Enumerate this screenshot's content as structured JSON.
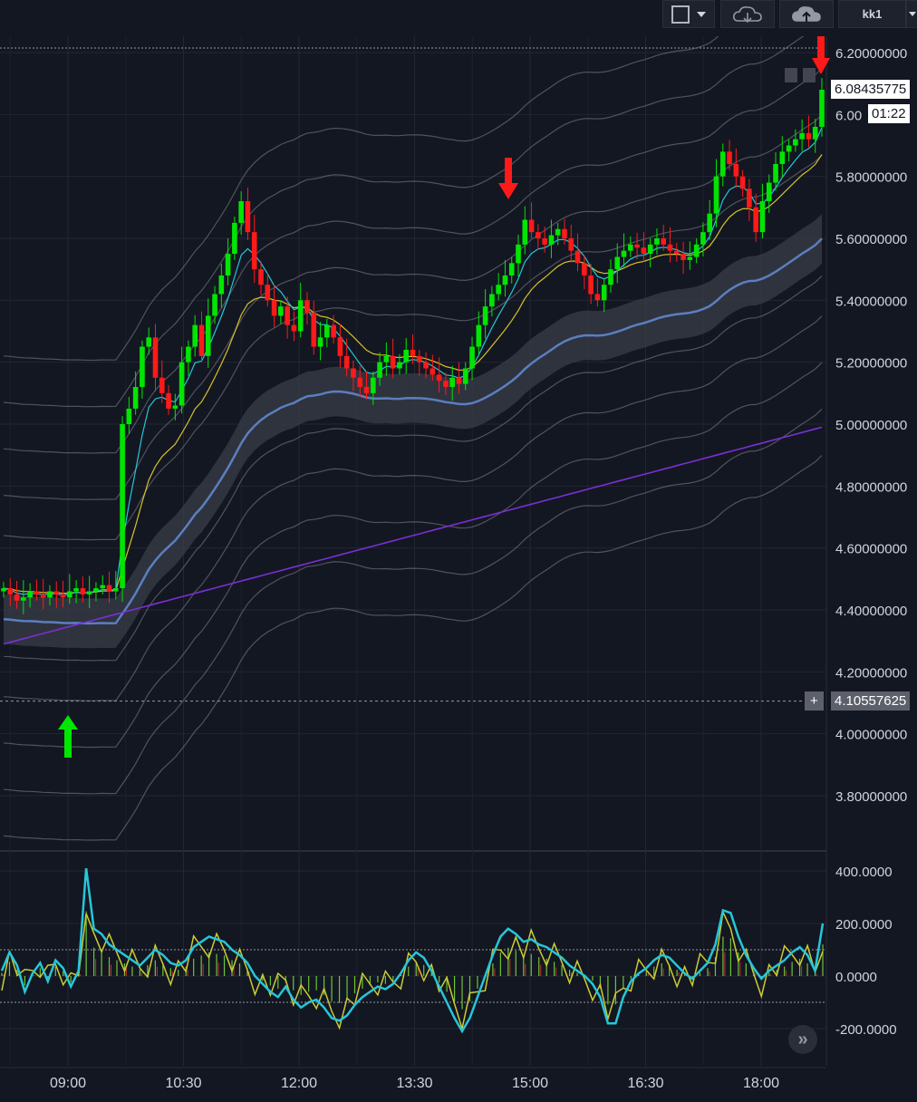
{
  "toolbar": {
    "user_label": "kk1",
    "icons": [
      "square-icon",
      "chevron-down-icon",
      "cloud-download-icon",
      "cloud-upload-icon",
      "chevron-down-icon"
    ]
  },
  "price_axis": {
    "ticks": [
      "6.20000000",
      "6.00",
      "5.80000000",
      "5.60000000",
      "5.40000000",
      "5.20000000",
      "5.00000000",
      "4.80000000",
      "4.60000000",
      "4.40000000",
      "4.20000000",
      "4.00000000",
      "3.80000000"
    ],
    "last_price_label": "6.08435775",
    "countdown_label": "01:22",
    "crosshair_label": "4.10557625",
    "crosshair_plus": "+"
  },
  "oscillator_axis": {
    "ticks": [
      "400.0000",
      "200.0000",
      "0.0000",
      "-200.0000"
    ]
  },
  "time_axis": {
    "ticks": [
      "09:00",
      "10:30",
      "12:00",
      "13:30",
      "15:00",
      "16:30",
      "18:00"
    ]
  },
  "colors": {
    "background": "#131722",
    "up": "#00e600",
    "down": "#ff1a1a",
    "ema_fast": "#26c6da",
    "ema_slow": "#d4c22a",
    "baseline": "#5b7fbf",
    "long_ma": "#7b2fd6",
    "envelope": "#6b6e78",
    "osc_line": "#26c6da",
    "osc_signal": "#cccc33",
    "arrow_down": "#ff1a1a",
    "arrow_up": "#00e600"
  },
  "chart_data": [
    {
      "type": "candlestick",
      "ylim": [
        3.7,
        6.25
      ],
      "xticks": [
        "09:00",
        "10:30",
        "12:00",
        "13:30",
        "15:00",
        "16:30",
        "18:00"
      ],
      "last_price": 6.08435775,
      "crosshair_price": 4.10557625,
      "closes": [
        4.47,
        4.45,
        4.43,
        4.44,
        4.46,
        4.45,
        4.44,
        4.46,
        4.45,
        4.44,
        4.46,
        4.47,
        4.45,
        4.46,
        4.47,
        4.48,
        4.46,
        4.47,
        5.0,
        5.05,
        5.12,
        5.25,
        5.28,
        5.15,
        5.1,
        5.05,
        5.06,
        5.2,
        5.25,
        5.32,
        5.22,
        5.35,
        5.42,
        5.48,
        5.55,
        5.65,
        5.72,
        5.62,
        5.5,
        5.45,
        5.4,
        5.35,
        5.38,
        5.32,
        5.3,
        5.4,
        5.36,
        5.25,
        5.28,
        5.32,
        5.28,
        5.22,
        5.18,
        5.15,
        5.12,
        5.1,
        5.15,
        5.2,
        5.22,
        5.18,
        5.2,
        5.24,
        5.22,
        5.2,
        5.18,
        5.16,
        5.14,
        5.12,
        5.15,
        5.13,
        5.18,
        5.25,
        5.32,
        5.38,
        5.42,
        5.45,
        5.48,
        5.52,
        5.58,
        5.66,
        5.62,
        5.6,
        5.58,
        5.61,
        5.63,
        5.6,
        5.56,
        5.52,
        5.48,
        5.42,
        5.4,
        5.45,
        5.5,
        5.54,
        5.56,
        5.58,
        5.57,
        5.55,
        5.58,
        5.6,
        5.58,
        5.56,
        5.55,
        5.53,
        5.54,
        5.58,
        5.62,
        5.68,
        5.8,
        5.88,
        5.84,
        5.8,
        5.76,
        5.7,
        5.62,
        5.72,
        5.78,
        5.84,
        5.88,
        5.9,
        5.92,
        5.94,
        5.92,
        5.96,
        6.08
      ],
      "series": [
        {
          "name": "",
          "kind": "ema_fast"
        },
        {
          "name": "",
          "kind": "ema_slow"
        },
        {
          "name": "",
          "kind": "baseline"
        },
        {
          "name": "",
          "kind": "long_ma"
        }
      ],
      "markers": [
        {
          "type": "up-arrow",
          "time": "09:00",
          "price": 3.95
        },
        {
          "type": "down-arrow",
          "price": 5.82
        },
        {
          "type": "down-arrow",
          "price": 6.18
        }
      ]
    },
    {
      "type": "line",
      "ylim": [
        -260,
        460
      ],
      "yticks": [
        400,
        200,
        0,
        -200
      ],
      "guide_levels": [
        100,
        -100
      ],
      "series": [
        {
          "name": "",
          "values": [
            20,
            90,
            40,
            -60,
            10,
            50,
            -20,
            60,
            30,
            -40,
            20,
            410,
            180,
            160,
            120,
            100,
            80,
            60,
            40,
            70,
            100,
            80,
            50,
            40,
            60,
            110,
            130,
            150,
            140,
            130,
            100,
            80,
            50,
            0,
            -30,
            -60,
            -80,
            -40,
            -90,
            -120,
            -100,
            -90,
            -120,
            -160,
            -170,
            -150,
            -110,
            -80,
            -60,
            -40,
            -50,
            -30,
            10,
            60,
            90,
            70,
            20,
            -40,
            -100,
            -160,
            -210,
            -160,
            -80,
            0,
            80,
            150,
            180,
            160,
            130,
            140,
            120,
            110,
            90,
            70,
            40,
            20,
            0,
            -30,
            -80,
            -180,
            -180,
            -80,
            -20,
            10,
            30,
            60,
            80,
            70,
            40,
            10,
            -10,
            20,
            50,
            120,
            250,
            240,
            150,
            80,
            30,
            -10,
            20,
            40,
            60,
            90,
            110,
            80,
            20,
            200
          ]
        }
      ]
    }
  ]
}
